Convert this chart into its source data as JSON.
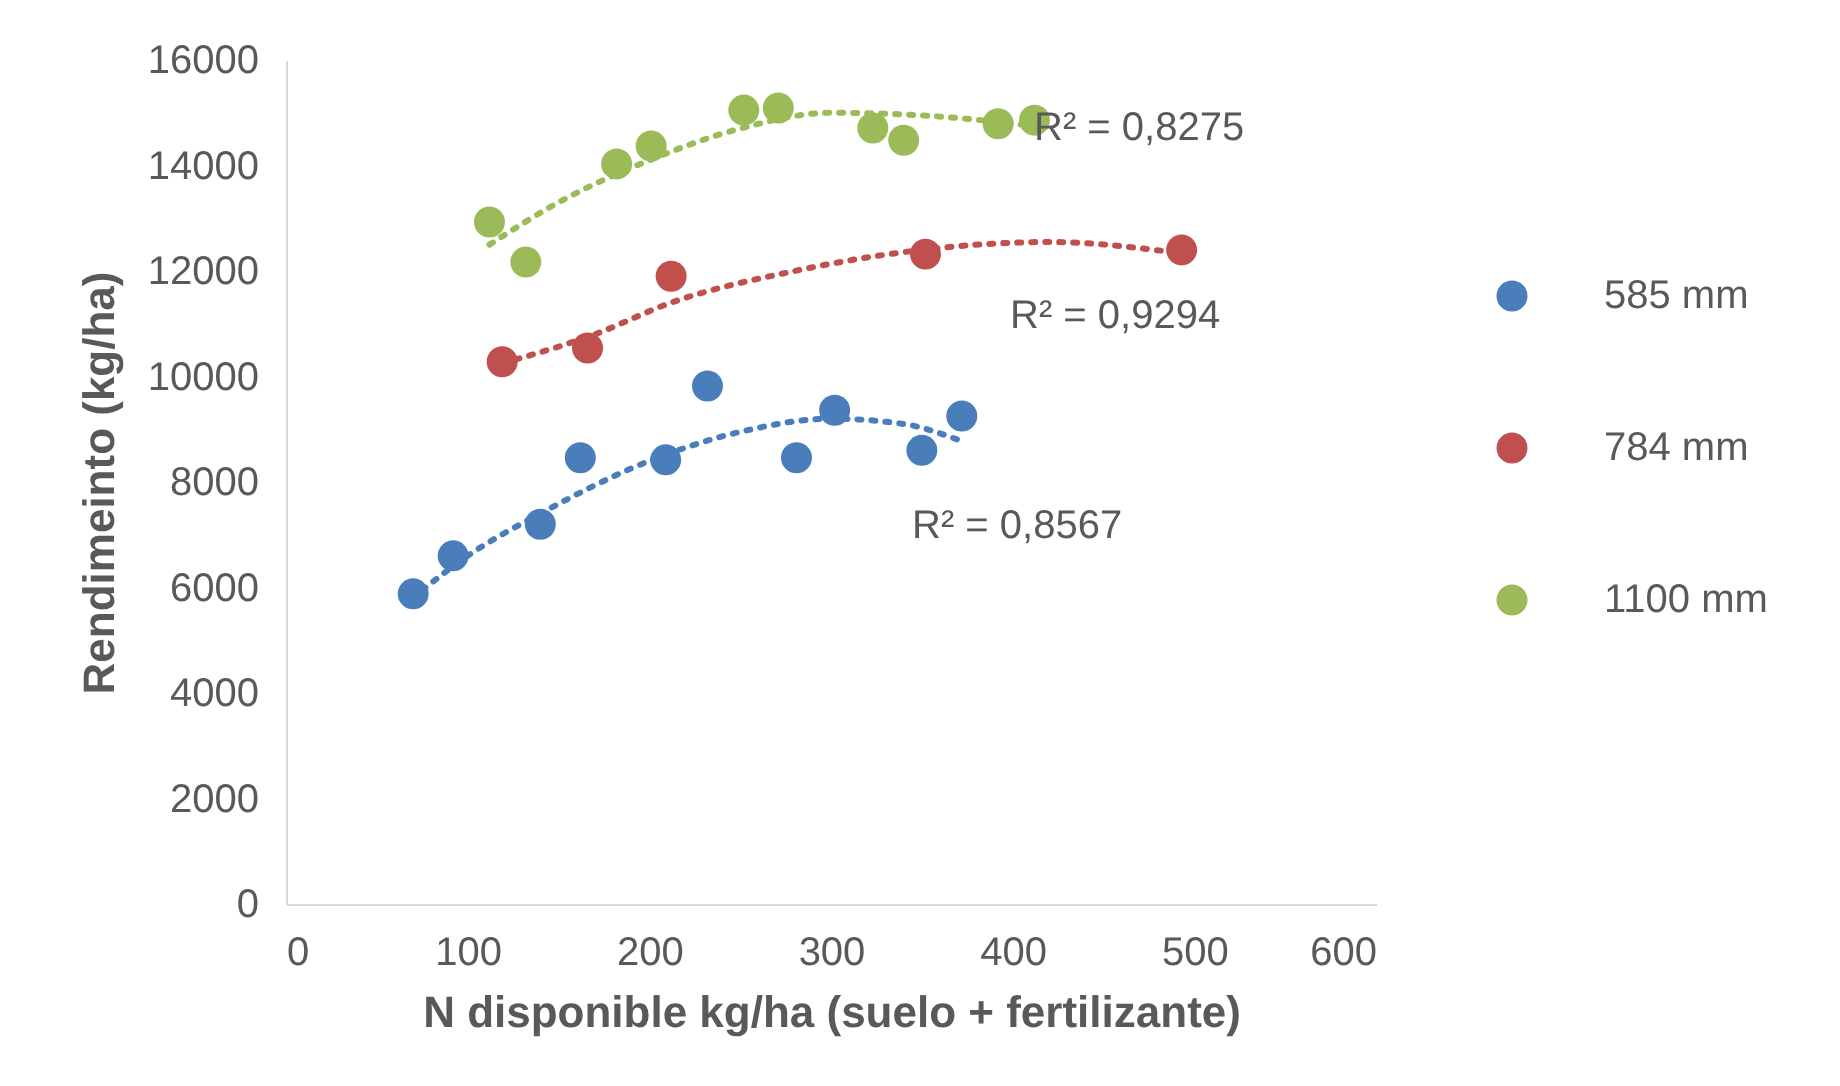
{
  "chart_data": {
    "type": "scatter",
    "xlabel": "N disponible  kg/ha (suelo + fertilizante)",
    "ylabel": "Rendimeinto (kg/ha)",
    "xlim": [
      0,
      600
    ],
    "xticks": [
      0,
      100,
      200,
      300,
      400,
      500,
      600
    ],
    "ylim": [
      0,
      16000
    ],
    "yticks": [
      0,
      2000,
      4000,
      6000,
      8000,
      10000,
      12000,
      14000,
      16000
    ],
    "grid": false,
    "legend": "right",
    "marker": "circle",
    "series": [
      {
        "name": "585 mm",
        "color": "#4a7ebb",
        "x": [
          70,
          92,
          140,
          162,
          209,
          232,
          281,
          302,
          350,
          372
        ],
        "values": [
          5880,
          6600,
          7200,
          8460,
          8420,
          9820,
          8460,
          9360,
          8600,
          9250
        ]
      },
      {
        "name": "784 mm",
        "color": "#c0504d",
        "x": [
          119,
          166,
          212,
          352,
          493
        ],
        "values": [
          10280,
          10540,
          11900,
          12320,
          12400
        ]
      },
      {
        "name": "1100 mm",
        "color": "#9bbb59",
        "x": [
          112,
          132,
          182,
          201,
          252,
          271,
          323,
          340,
          392,
          412
        ],
        "values": [
          12930,
          12170,
          14030,
          14370,
          15050,
          15090,
          14710,
          14480,
          14790,
          14860
        ]
      },
      {
        "type": "line",
        "line_style": "dotted",
        "marker": "none",
        "color": "#4a7ebb",
        "x": [
          75,
          100,
          140,
          200,
          250,
          300,
          340,
          370
        ],
        "values": [
          5950,
          6600,
          7400,
          8400,
          8950,
          9200,
          9100,
          8800
        ]
      },
      {
        "type": "line",
        "line_style": "dotted",
        "marker": "none",
        "color": "#c0504d",
        "x": [
          119,
          170,
          212,
          280,
          350,
          420,
          490
        ],
        "values": [
          10250,
          10800,
          11400,
          12000,
          12400,
          12550,
          12350
        ]
      },
      {
        "type": "line",
        "line_style": "dotted",
        "marker": "none",
        "color": "#9bbb59",
        "x": [
          112,
          150,
          200,
          250,
          300,
          350,
          412
        ],
        "values": [
          12500,
          13300,
          14100,
          14700,
          15000,
          14950,
          14750
        ]
      }
    ],
    "annotations": [
      "R² = 0,8275",
      "R² = 0,9294",
      "R² = 0,8567"
    ]
  }
}
